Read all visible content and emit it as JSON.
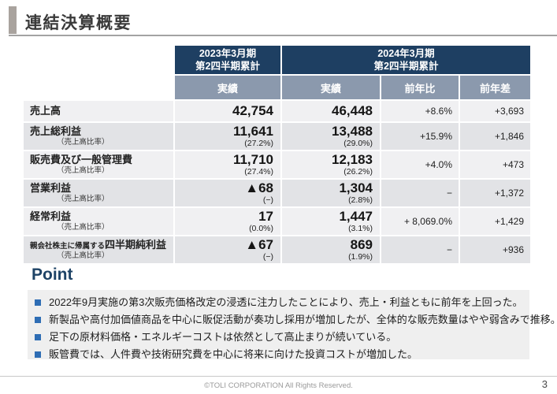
{
  "page": {
    "title": "連結決算概要",
    "page_number": "3",
    "footer": "©TOLI CORPORATION All Rights Reserved."
  },
  "colors": {
    "header_navy": "#1e3f62",
    "subheader_blue_gray": "#8b99ad",
    "row_light": "#f0f0f2",
    "row_dark": "#e2e3e6",
    "point_navy": "#1e4366",
    "bullet_blue": "#2e6db4",
    "accent_bar_gray": "#a9a39e"
  },
  "table": {
    "group_2023": {
      "line1": "2023年3月期",
      "line2": "第2四半期累計"
    },
    "group_2024": {
      "line1": "2024年3月期",
      "line2": "第2四半期累計"
    },
    "subheaders": {
      "actual_2023": "実績",
      "actual_2024": "実績",
      "yoy_pct": "前年比",
      "yoy_diff": "前年差"
    },
    "rows": [
      {
        "label": "売上高",
        "sublabel": "",
        "y2023": {
          "value": "42,754",
          "ratio": ""
        },
        "y2024": {
          "value": "46,448",
          "ratio": ""
        },
        "yoy_pct": "+8.6%",
        "yoy_diff": "+3,693"
      },
      {
        "label": "売上総利益",
        "sublabel": "（売上高比率）",
        "y2023": {
          "value": "11,641",
          "ratio": "(27.2%)"
        },
        "y2024": {
          "value": "13,488",
          "ratio": "(29.0%)"
        },
        "yoy_pct": "+15.9%",
        "yoy_diff": "+1,846"
      },
      {
        "label": "販売費及び一般管理費",
        "sublabel": "（売上高比率）",
        "y2023": {
          "value": "11,710",
          "ratio": "(27.4%)"
        },
        "y2024": {
          "value": "12,183",
          "ratio": "(26.2%)"
        },
        "yoy_pct": "+4.0%",
        "yoy_diff": "+473"
      },
      {
        "label": "営業利益",
        "sublabel": "（売上高比率）",
        "y2023": {
          "value": "▲68",
          "ratio": "(−)"
        },
        "y2024": {
          "value": "1,304",
          "ratio": "(2.8%)"
        },
        "yoy_pct": "−",
        "yoy_diff": "+1,372"
      },
      {
        "label": "経常利益",
        "sublabel": "（売上高比率）",
        "y2023": {
          "value": "17",
          "ratio": "(0.0%)"
        },
        "y2024": {
          "value": "1,447",
          "ratio": "(3.1%)"
        },
        "yoy_pct": "+ 8,069.0%",
        "yoy_diff": "+1,429"
      },
      {
        "label_prefix": "親会社株主に帰属する",
        "label": "四半期純利益",
        "sublabel": "（売上高比率）",
        "y2023": {
          "value": "▲67",
          "ratio": "(−)"
        },
        "y2024": {
          "value": "869",
          "ratio": "(1.9%)"
        },
        "yoy_pct": "−",
        "yoy_diff": "+936"
      }
    ]
  },
  "point": {
    "title": "Point",
    "bullets": [
      "2022年9月実施の第3次販売価格改定の浸透に注力したことにより、売上・利益ともに前年を上回った。",
      "新製品や高付加価値商品を中心に販促活動が奏功し採用が増加したが、全体的な販売数量はやや弱含みで推移。",
      "足下の原材料価格・エネルギーコストは依然として高止まりが続いている。",
      "販管費では、人件費や技術研究費を中心に将来に向けた投資コストが増加した。"
    ]
  }
}
